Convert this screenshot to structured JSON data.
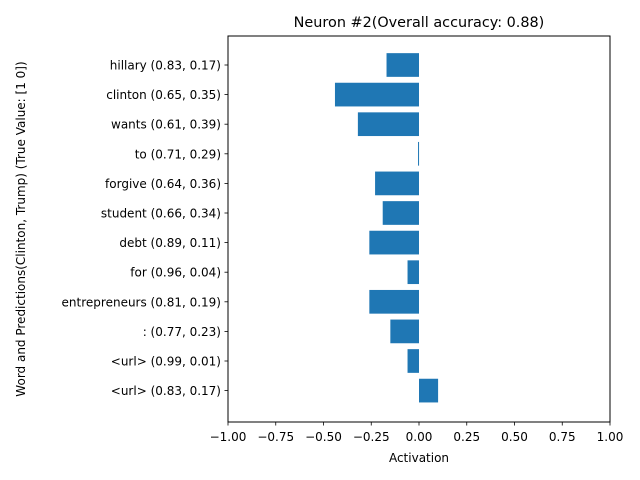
{
  "chart_data": {
    "type": "bar",
    "orientation": "horizontal",
    "title": "Neuron #2(Overall accuracy: 0.88)",
    "xlabel": "Activation",
    "ylabel": "Word and Predictions(Clinton, Trump) (True Value: [1 0])",
    "xlim": [
      -1.0,
      1.0
    ],
    "x_ticks": [
      "−1.00",
      "−0.75",
      "−0.50",
      "−0.25",
      "0.00",
      "0.25",
      "0.50",
      "0.75",
      "1.00"
    ],
    "bar_color": "#1f77b4",
    "grid": false,
    "legend": "none",
    "categories": [
      "hillary (0.83, 0.17)",
      "clinton (0.65, 0.35)",
      "wants (0.61, 0.39)",
      "to (0.71, 0.29)",
      "forgive (0.64, 0.36)",
      "student (0.66, 0.34)",
      "debt (0.89, 0.11)",
      "for (0.96, 0.04)",
      "entrepreneurs (0.81, 0.19)",
      ": (0.77, 0.23)",
      "<url> (0.99, 0.01)",
      "<url> (0.83, 0.17)"
    ],
    "values": [
      -0.17,
      -0.44,
      -0.32,
      -0.005,
      -0.23,
      -0.19,
      -0.26,
      -0.06,
      -0.26,
      -0.15,
      -0.06,
      0.1
    ]
  }
}
